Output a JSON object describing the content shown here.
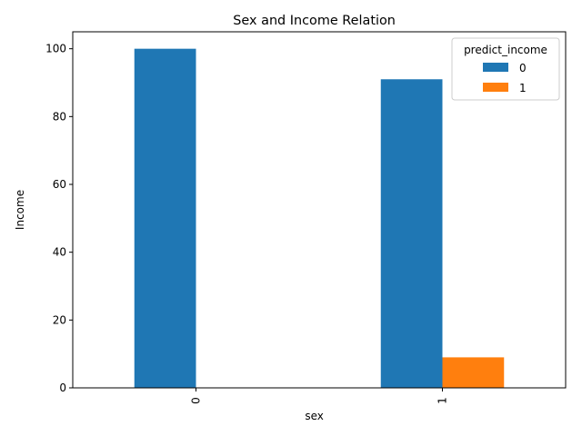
{
  "chart_data": {
    "type": "bar",
    "title": "Sex and Income Relation",
    "xlabel": "sex",
    "ylabel": "Income",
    "categories": [
      "0",
      "1"
    ],
    "series": [
      {
        "name": "0",
        "values": [
          100,
          91
        ],
        "color": "#1f77b4"
      },
      {
        "name": "1",
        "values": [
          0,
          9
        ],
        "color": "#ff7f0e"
      }
    ],
    "ylim": [
      0,
      105
    ],
    "yticks": [
      0,
      20,
      40,
      60,
      80,
      100
    ],
    "grid": false,
    "legend": {
      "title": "predict_income",
      "placement": "top-right"
    }
  }
}
